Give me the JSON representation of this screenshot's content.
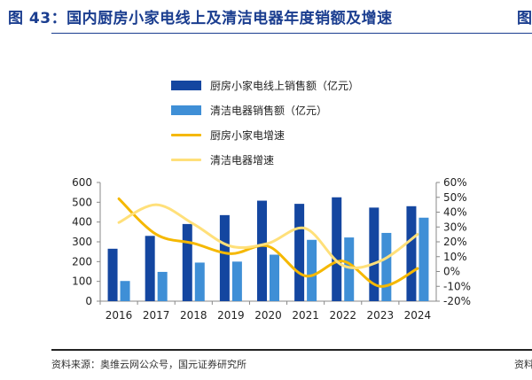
{
  "header": {
    "title": "图 43：国内厨房小家电线上及清洁电器年度销额及增速",
    "title_right": "图"
  },
  "footer": {
    "source": "资料来源：奥维云网公众号，国元证券研究所",
    "source_right": "资料"
  },
  "colors": {
    "kitchen_bar": "#1446a0",
    "cleaning_bar": "#3f8fd6",
    "kitchen_line": "#f5b800",
    "cleaning_line": "#ffe07a",
    "title": "#1a3d8f"
  },
  "chart_data": {
    "type": "bar",
    "categories": [
      "2016",
      "2017",
      "2018",
      "2019",
      "2020",
      "2021",
      "2022",
      "2023",
      "2024"
    ],
    "ylim_left": [
      0,
      600
    ],
    "yticks_left": [
      "0",
      "100",
      "200",
      "300",
      "400",
      "500",
      "600"
    ],
    "ylim_right": [
      -20,
      60
    ],
    "yticks_right": [
      "-20%",
      "-10%",
      "0%",
      "10%",
      "20%",
      "30%",
      "40%",
      "50%",
      "60%"
    ],
    "legend_position": "top-center",
    "grid": false,
    "series": [
      {
        "name": "厨房小家电线上销售额（亿元）",
        "type": "bar",
        "axis": "left",
        "values": [
          265,
          330,
          390,
          435,
          508,
          492,
          525,
          473,
          480
        ]
      },
      {
        "name": "清洁电器销售额（亿元）",
        "type": "bar",
        "axis": "left",
        "values": [
          102,
          148,
          195,
          200,
          235,
          310,
          322,
          345,
          422
        ]
      },
      {
        "name": "厨房小家电增速",
        "type": "line",
        "axis": "right",
        "values": [
          49,
          25,
          19,
          12,
          17,
          -3,
          7,
          -10,
          2
        ]
      },
      {
        "name": "清洁电器增速",
        "type": "line",
        "axis": "right",
        "values": [
          33,
          45,
          32,
          17,
          19,
          29,
          4,
          7,
          25
        ]
      }
    ]
  }
}
